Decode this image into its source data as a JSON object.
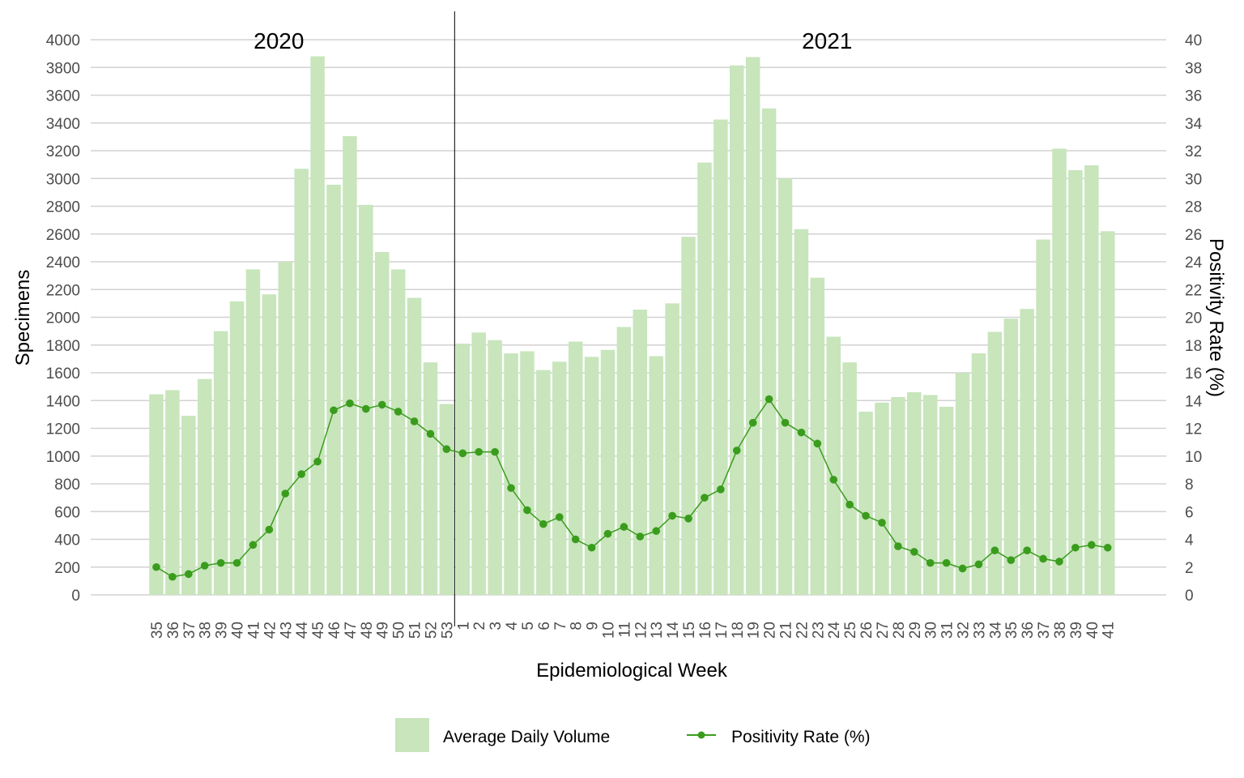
{
  "chart_data": {
    "type": "bar",
    "xlabel": "Epidemiological Week",
    "ylabel": "Specimens",
    "y2label": "Positivity Rate (%)",
    "ylim": [
      0,
      4000
    ],
    "y2lim": [
      0,
      40
    ],
    "yticks": [
      0,
      200,
      400,
      600,
      800,
      1000,
      1200,
      1400,
      1600,
      1800,
      2000,
      2200,
      2400,
      2600,
      2800,
      3000,
      3200,
      3400,
      3600,
      3800,
      4000
    ],
    "y2ticks": [
      0,
      2,
      4,
      6,
      8,
      10,
      12,
      14,
      16,
      18,
      20,
      22,
      24,
      26,
      28,
      30,
      32,
      34,
      36,
      38,
      40
    ],
    "grid": true,
    "legend_position": "bottom",
    "year_labels": [
      {
        "text": "2020",
        "at_category": 8
      },
      {
        "text": "2021",
        "at_category": 42
      }
    ],
    "divider_after_category": 18,
    "categories": [
      "35",
      "36",
      "37",
      "38",
      "39",
      "40",
      "41",
      "42",
      "43",
      "44",
      "45",
      "46",
      "47",
      "48",
      "49",
      "50",
      "51",
      "52",
      "53",
      "1",
      "2",
      "3",
      "4",
      "5",
      "6",
      "7",
      "8",
      "9",
      "10",
      "11",
      "12",
      "13",
      "14",
      "15",
      "16",
      "17",
      "18",
      "19",
      "20",
      "21",
      "22",
      "23",
      "24",
      "25",
      "26",
      "27",
      "28",
      "29",
      "30",
      "31",
      "32",
      "33",
      "34",
      "35",
      "36",
      "37",
      "38",
      "39",
      "40",
      "41"
    ],
    "series": [
      {
        "name": "Average Daily Volume",
        "kind": "bar",
        "axis": "left",
        "color": "#c8e5bc",
        "values": [
          1445,
          1475,
          1290,
          1555,
          1900,
          2115,
          2345,
          2165,
          2400,
          3070,
          3880,
          2955,
          3305,
          2810,
          2470,
          2345,
          2140,
          1675,
          1375,
          1810,
          1890,
          1835,
          1740,
          1755,
          1620,
          1680,
          1825,
          1715,
          1765,
          1930,
          2055,
          1720,
          2100,
          2580,
          3115,
          3425,
          3815,
          3875,
          3505,
          3000,
          2635,
          2285,
          1860,
          1675,
          1320,
          1385,
          1425,
          1460,
          1440,
          1355,
          1600,
          1740,
          1895,
          1990,
          2060,
          2560,
          3215,
          3060,
          3095,
          2620
        ]
      },
      {
        "name": "Positivity Rate (%)",
        "kind": "line",
        "axis": "right",
        "color": "#3a9c1d",
        "values": [
          2.0,
          1.3,
          1.5,
          2.1,
          2.3,
          2.3,
          3.6,
          4.7,
          7.3,
          8.7,
          9.6,
          13.3,
          13.8,
          13.4,
          13.7,
          13.2,
          12.5,
          11.6,
          10.5,
          10.2,
          10.3,
          10.3,
          7.7,
          6.1,
          5.1,
          5.6,
          4.0,
          3.4,
          4.4,
          4.9,
          4.2,
          4.6,
          5.7,
          5.5,
          7.0,
          7.6,
          10.4,
          12.4,
          14.1,
          12.4,
          11.7,
          10.9,
          8.3,
          6.5,
          5.7,
          5.2,
          3.5,
          3.1,
          2.3,
          2.3,
          1.9,
          2.2,
          3.2,
          2.5,
          3.2,
          2.6,
          2.4,
          3.4,
          3.6,
          3.4
        ]
      }
    ]
  }
}
